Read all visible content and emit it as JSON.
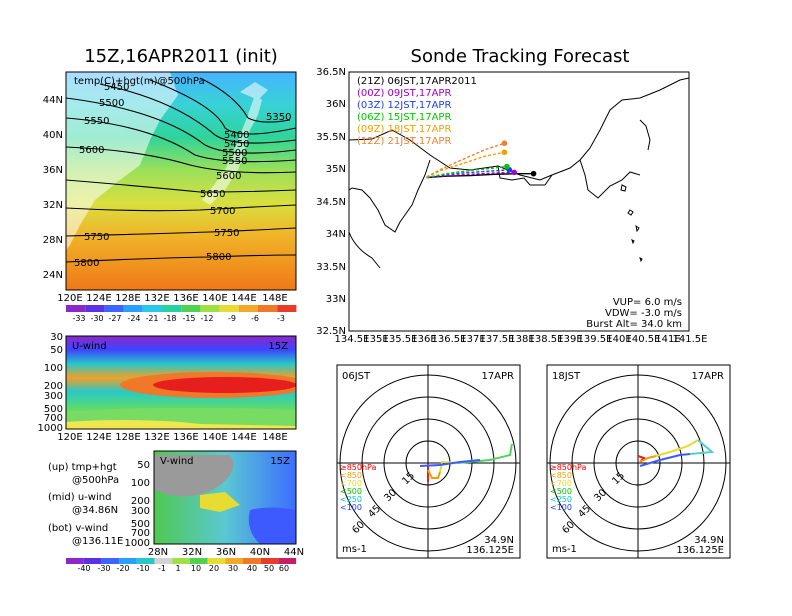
{
  "titles": {
    "left": "15Z,16APR2011 (init)",
    "main": "Sonde Tracking Forecast"
  },
  "map500": {
    "label": "temp(C)+hgt(m)@500hPa",
    "lat_ticks": [
      "44N",
      "40N",
      "36N",
      "32N",
      "28N",
      "24N"
    ],
    "lon_ticks": [
      "120E",
      "124E",
      "128E",
      "132E",
      "136E",
      "140E",
      "144E",
      "148E"
    ],
    "contour_labels": [
      "5450",
      "5500",
      "5550",
      "5600",
      "5350",
      "5400",
      "5450",
      "5500",
      "5550",
      "5600",
      "5650",
      "5700",
      "5750",
      "5750",
      "5800",
      "5800"
    ],
    "colorbar": [
      "-33",
      "-30",
      "-27",
      "-24",
      "-21",
      "-18",
      "-15",
      "-12",
      "-9",
      "-6",
      "-3"
    ]
  },
  "uwind": {
    "label": "U-wind",
    "time": "15Z",
    "y_ticks": [
      "30",
      "50",
      "100",
      "200",
      "300",
      "500",
      "700",
      "1000"
    ],
    "x_ticks": [
      "120E",
      "124E",
      "128E",
      "132E",
      "136E",
      "140E",
      "144E",
      "148E"
    ]
  },
  "vwind": {
    "label": "V-wind",
    "time": "15Z",
    "y_ticks": [
      "50",
      "100",
      "200",
      "300",
      "500",
      "700",
      "1000"
    ],
    "x_ticks": [
      "28N",
      "32N",
      "36N",
      "40N",
      "44N"
    ],
    "colorbar": [
      "-40",
      "-30",
      "-20",
      "-10",
      "-1",
      "1",
      "10",
      "20",
      "30",
      "40",
      "50",
      "60"
    ]
  },
  "legend_notes": {
    "up1": "(up)  tmp+hgt",
    "up2": "@500hPa",
    "mid1": "(mid)  u-wind",
    "mid2": "@34.86N",
    "bot1": "(bot)  v-wind",
    "bot2": "@136.11E"
  },
  "track": {
    "lat_ticks": [
      "36.5N",
      "36N",
      "35.5N",
      "35N",
      "34.5N",
      "34N",
      "33.5N",
      "33N",
      "32.5N"
    ],
    "lon_ticks": [
      "134.5E",
      "135E",
      "135.5E",
      "136E",
      "136.5E",
      "137E",
      "137.5E",
      "138E",
      "138.5E",
      "139E",
      "139.5E",
      "140E",
      "140.5E",
      "141E",
      "141.5E"
    ],
    "legend": [
      {
        "text": "(21Z)  06JST,17APR2011",
        "color": "#000000"
      },
      {
        "text": "(00Z)  09JST,17APR",
        "color": "#a000c8"
      },
      {
        "text": "(03Z)  12JST,17APR",
        "color": "#1e3cff"
      },
      {
        "text": "(06Z)  15JST,17APR",
        "color": "#00c800"
      },
      {
        "text": "(09Z)  18JST,17APR",
        "color": "#f0a000"
      },
      {
        "text": "(12Z)  21JST,17APR",
        "color": "#f08030"
      }
    ],
    "params": {
      "vup": "VUP=  6.0  m/s",
      "vdw": "VDW= -3.0  m/s",
      "burst": "Burst Alt=  34.0  km"
    }
  },
  "polar_left": {
    "time": "06JST",
    "date": "17APR",
    "ring_labels": [
      "15",
      "30",
      "45",
      "60"
    ],
    "levels": [
      {
        "text": "≥850hPa",
        "color": "#ff0000"
      },
      {
        "text": "<850",
        "color": "#f0a000"
      },
      {
        "text": "<700",
        "color": "#e6dc32"
      },
      {
        "text": "<500",
        "color": "#00c800"
      },
      {
        "text": "<250",
        "color": "#00c8c8"
      },
      {
        "text": "<100",
        "color": "#1e3cff"
      }
    ],
    "unit": "ms-1",
    "lat": "34.9N",
    "lon": "136.125E"
  },
  "polar_right": {
    "time": "18JST",
    "date": "17APR",
    "ring_labels": [
      "15",
      "30",
      "45",
      "60"
    ],
    "unit": "ms-1",
    "lat": "34.9N",
    "lon": "136.125E"
  },
  "chart_data": [
    {
      "type": "line",
      "title": "Sonde Tracking Forecast",
      "xlabel": "",
      "ylabel": "",
      "xlim": [
        134.5,
        141.5
      ],
      "ylim": [
        32.5,
        36.5
      ],
      "series": [
        {
          "name": "(21Z)  06JST,17APR2011",
          "color": "#000000",
          "x": [
            136.1,
            136.5,
            137.0,
            137.5,
            138.0,
            138.3
          ],
          "y": [
            34.87,
            34.89,
            34.9,
            34.92,
            34.93,
            34.93
          ]
        },
        {
          "name": "(00Z)  09JST,17APR",
          "color": "#a000c8",
          "x": [
            136.1,
            136.5,
            137.0,
            137.5,
            137.9
          ],
          "y": [
            34.87,
            34.9,
            34.92,
            34.94,
            34.95
          ]
        },
        {
          "name": "(03Z)  12JST,17APR",
          "color": "#1e3cff",
          "x": [
            136.1,
            136.5,
            137.0,
            137.4,
            137.8
          ],
          "y": [
            34.87,
            34.92,
            34.95,
            34.97,
            34.99
          ]
        },
        {
          "name": "(06Z)  15JST,17APR",
          "color": "#00c800",
          "x": [
            136.1,
            136.5,
            137.0,
            137.4,
            137.75
          ],
          "y": [
            34.87,
            34.93,
            34.98,
            35.01,
            35.04
          ]
        },
        {
          "name": "(09Z)  18JST,17APR",
          "color": "#f0a000",
          "x": [
            136.1,
            136.4,
            136.9,
            137.3,
            137.7
          ],
          "y": [
            34.88,
            34.98,
            35.1,
            35.2,
            35.26
          ]
        },
        {
          "name": "(12Z)  21JST,17APR",
          "color": "#f08030",
          "x": [
            136.1,
            136.4,
            136.9,
            137.3,
            137.7
          ],
          "y": [
            34.88,
            35.0,
            35.17,
            35.3,
            35.4
          ]
        }
      ]
    }
  ]
}
